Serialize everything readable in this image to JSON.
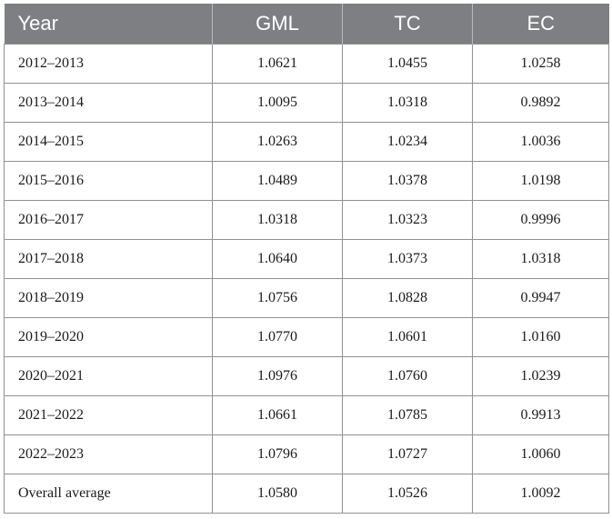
{
  "table": {
    "headers": [
      "Year",
      "GML",
      "TC",
      "EC"
    ],
    "rows": [
      {
        "year": "2012–2013",
        "gml": "1.0621",
        "tc": "1.0455",
        "ec": "1.0258"
      },
      {
        "year": "2013–2014",
        "gml": "1.0095",
        "tc": "1.0318",
        "ec": "0.9892"
      },
      {
        "year": "2014–2015",
        "gml": "1.0263",
        "tc": "1.0234",
        "ec": "1.0036"
      },
      {
        "year": "2015–2016",
        "gml": "1.0489",
        "tc": "1.0378",
        "ec": "1.0198"
      },
      {
        "year": "2016–2017",
        "gml": "1.0318",
        "tc": "1.0323",
        "ec": "0.9996"
      },
      {
        "year": "2017–2018",
        "gml": "1.0640",
        "tc": "1.0373",
        "ec": "1.0318"
      },
      {
        "year": "2018–2019",
        "gml": "1.0756",
        "tc": "1.0828",
        "ec": "0.9947"
      },
      {
        "year": "2019–2020",
        "gml": "1.0770",
        "tc": "1.0601",
        "ec": "1.0160"
      },
      {
        "year": "2020–2021",
        "gml": "1.0976",
        "tc": "1.0760",
        "ec": "1.0239"
      },
      {
        "year": "2021–2022",
        "gml": "1.0661",
        "tc": "1.0785",
        "ec": "0.9913"
      },
      {
        "year": "2022–2023",
        "gml": "1.0796",
        "tc": "1.0727",
        "ec": "1.0060"
      },
      {
        "year": "Overall average",
        "gml": "1.0580",
        "tc": "1.0526",
        "ec": "1.0092"
      }
    ]
  },
  "colors": {
    "header_bg": "#7d7f83",
    "header_text": "#ffffff",
    "grid": "#8f9195"
  }
}
